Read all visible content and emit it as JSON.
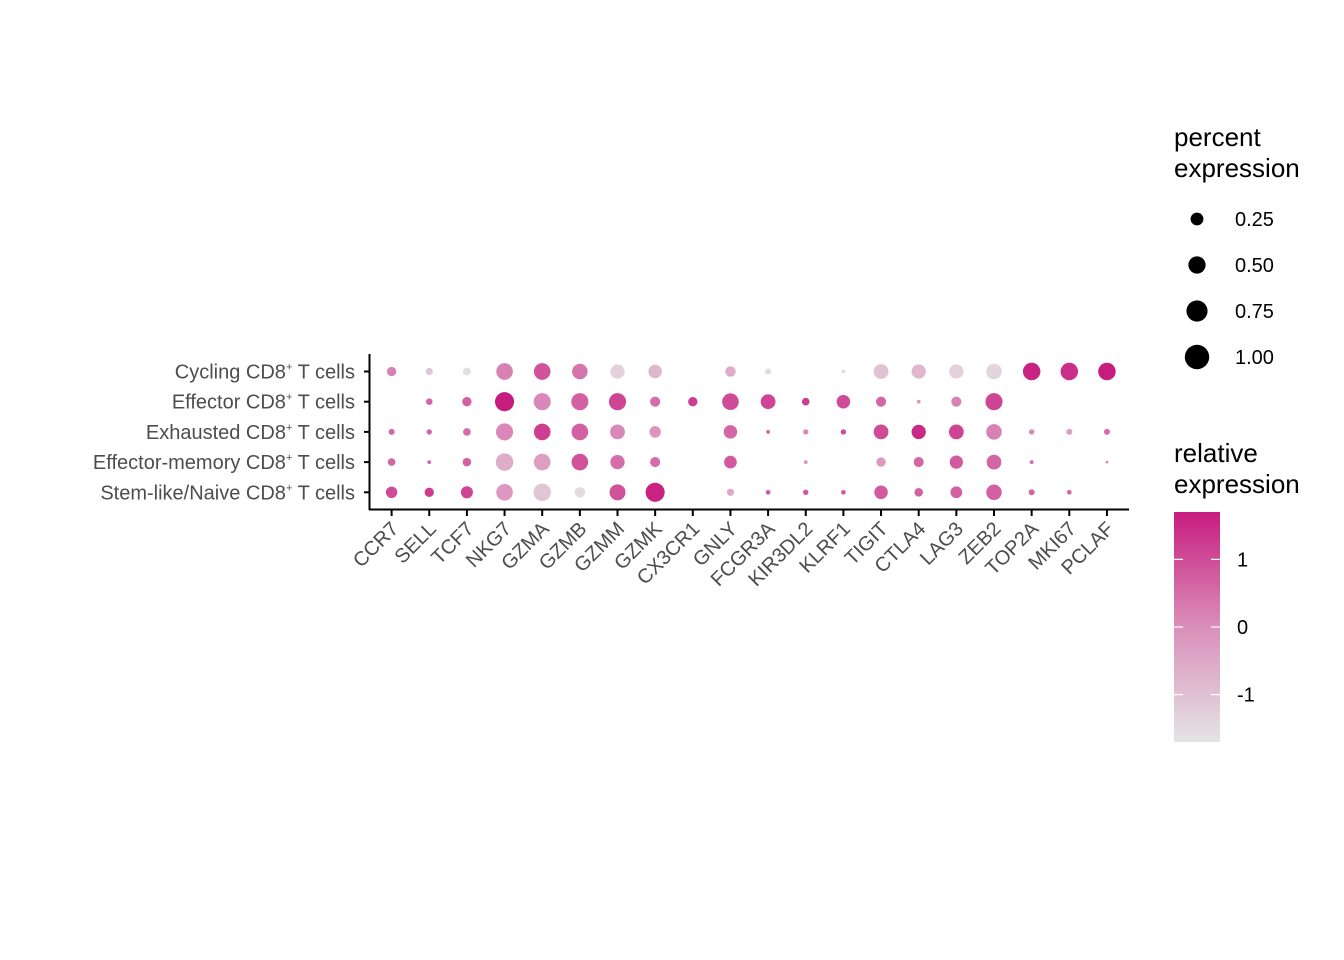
{
  "chart_data": {
    "type": "dotplot",
    "genes": [
      "CCR7",
      "SELL",
      "TCF7",
      "NKG7",
      "GZMA",
      "GZMB",
      "GZMM",
      "GZMK",
      "CX3CR1",
      "GNLY",
      "FCGR3A",
      "KIR3DL2",
      "KLRF1",
      "TIGIT",
      "CTLA4",
      "LAG3",
      "ZEB2",
      "TOP2A",
      "MKI67",
      "PCLAF"
    ],
    "rows": [
      {
        "label": "Cycling CD8",
        "sup": "+",
        "suffix": " T cells"
      },
      {
        "label": "Effector CD8",
        "sup": "+",
        "suffix": " T cells"
      },
      {
        "label": "Exhausted CD8",
        "sup": "+",
        "suffix": " T cells"
      },
      {
        "label": "Effector-memory CD8",
        "sup": "+",
        "suffix": " T cells"
      },
      {
        "label": "Stem-like/Naive CD8",
        "sup": "+",
        "suffix": " T cells"
      }
    ],
    "pct": [
      [
        0.12,
        0.07,
        0.09,
        0.38,
        0.38,
        0.33,
        0.28,
        0.25,
        0,
        0.15,
        0.05,
        0,
        0.02,
        0.3,
        0.28,
        0.28,
        0.33,
        0.42,
        0.42,
        0.42
      ],
      [
        0,
        0.06,
        0.12,
        0.5,
        0.4,
        0.4,
        0.4,
        0.14,
        0.12,
        0.38,
        0.3,
        0.08,
        0.25,
        0.14,
        0.02,
        0.14,
        0.4,
        0,
        0,
        0
      ],
      [
        0.05,
        0.04,
        0.08,
        0.4,
        0.38,
        0.38,
        0.3,
        0.18,
        0,
        0.25,
        0.02,
        0.04,
        0.04,
        0.3,
        0.28,
        0.3,
        0.33,
        0.04,
        0.05,
        0.05
      ],
      [
        0.08,
        0.02,
        0.1,
        0.42,
        0.38,
        0.38,
        0.28,
        0.14,
        0,
        0.22,
        0,
        0.02,
        0,
        0.12,
        0.14,
        0.24,
        0.3,
        0.02,
        0,
        0.01
      ],
      [
        0.18,
        0.12,
        0.2,
        0.38,
        0.42,
        0.15,
        0.35,
        0.5,
        0,
        0.07,
        0.03,
        0.04,
        0.03,
        0.25,
        0.1,
        0.19,
        0.33,
        0.05,
        0.03,
        0
      ]
    ],
    "expr": [
      [
        0.2,
        -1.1,
        -1.6,
        0.2,
        0.9,
        0.4,
        -1.3,
        -0.8,
        0,
        -0.6,
        -1.5,
        0,
        -1.5,
        -1.0,
        -0.8,
        -1.3,
        -1.4,
        1.6,
        1.4,
        1.7
      ],
      [
        0,
        0.6,
        0.7,
        1.7,
        0.1,
        0.7,
        1.1,
        0.5,
        1.2,
        1.0,
        1.1,
        1.2,
        1.0,
        0.6,
        -0.2,
        0.2,
        1.1,
        0,
        0,
        0
      ],
      [
        0.6,
        0.6,
        0.5,
        0.1,
        1.2,
        0.7,
        0.1,
        -0.1,
        0,
        0.6,
        0.7,
        0.1,
        1.0,
        1.0,
        1.5,
        1.1,
        0.2,
        0.1,
        -0.3,
        0.5
      ],
      [
        0.6,
        0.6,
        0.7,
        -0.6,
        -0.3,
        0.9,
        0.5,
        0.5,
        0,
        0.8,
        0,
        -0.1,
        0,
        -0.2,
        0.6,
        0.8,
        0.6,
        0.6,
        0,
        0.2
      ],
      [
        1.0,
        1.2,
        1.1,
        -0.2,
        -1.1,
        -1.5,
        0.9,
        1.6,
        0,
        -0.5,
        0.8,
        0.8,
        0.8,
        0.8,
        0.7,
        0.7,
        0.7,
        0.6,
        0.6,
        0
      ]
    ],
    "size_legend": {
      "title_line1": "percent",
      "title_line2": "expression",
      "values": [
        "0.25",
        "0.50",
        "0.75",
        "1.00"
      ],
      "numeric": [
        0.25,
        0.5,
        0.75,
        1.0
      ]
    },
    "color_legend": {
      "title_line1": "relative",
      "title_line2": "expression",
      "ticks": [
        "1",
        "0",
        "-1"
      ],
      "tick_values": [
        1,
        0,
        -1
      ],
      "range": [
        -1.7,
        1.7
      ],
      "low_color": "#e4e4e4",
      "high_color": "#c71c7f"
    }
  }
}
